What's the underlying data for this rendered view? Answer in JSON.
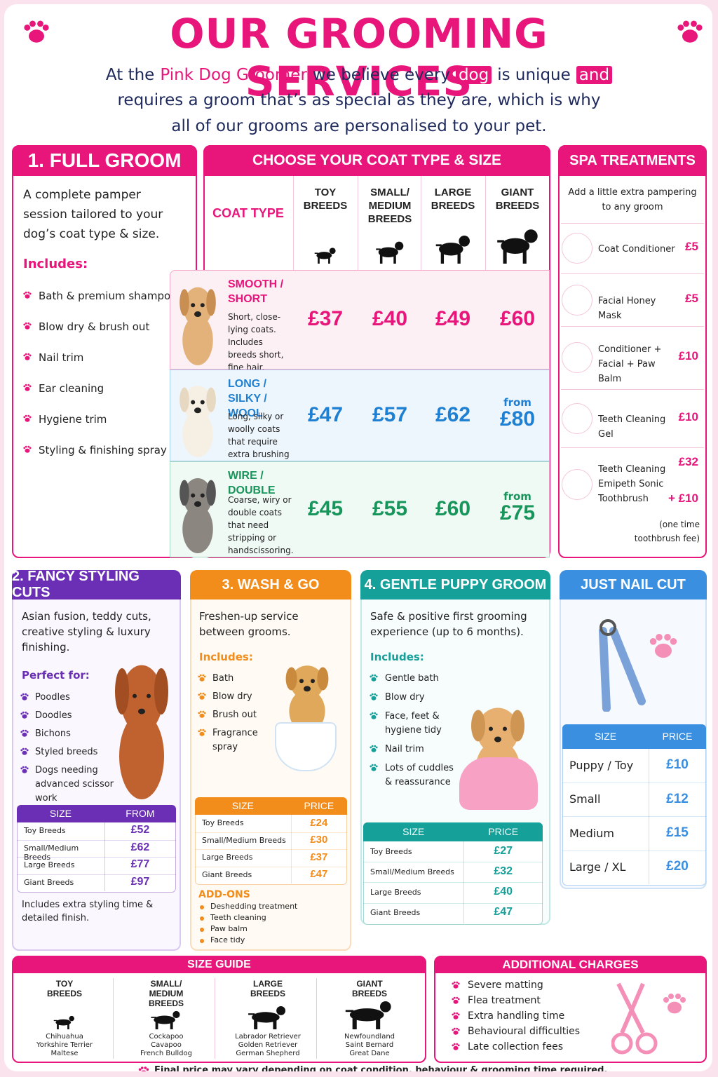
{
  "header": {
    "title": "OUR GROOMING SERVICES",
    "intro_line1": [
      {
        "text": "At the",
        "style": "plain"
      },
      {
        "text": "Pink Dog Groomer",
        "style": "brand"
      },
      {
        "text": "we believe every",
        "style": "plain"
      },
      {
        "text": "dog",
        "style": "highlight"
      },
      {
        "text": "is unique",
        "style": "plain"
      },
      {
        "text": "and",
        "style": "highlight"
      }
    ],
    "intro_rest": [
      "requires a groom that’s as special as they are, which is why",
      "all of our grooms are personalised to your pet."
    ]
  },
  "full_groom": {
    "title": "1. FULL GROOM",
    "description": "A complete pamper session tailored to your dog’s coat type & size.",
    "includes_label": "Includes:",
    "items": [
      "Bath & premium shampoo",
      "Blow dry & brush out",
      "Nail trim",
      "Ear cleaning",
      "Hygiene trim",
      "Styling & finishing spray"
    ]
  },
  "coat_table": {
    "title": "CHOOSE YOUR COAT TYPE & SIZE",
    "coat_type_label": "COAT TYPE",
    "columns": [
      "TOY BREEDS",
      "SMALL/ MEDIUM BREEDS",
      "LARGE BREEDS",
      "GIANT BREEDS"
    ],
    "rows": [
      {
        "name": "SMOOTH / SHORT",
        "description": "Short, close-lying coats. Includes breeds short, fine hair.",
        "color": "#e8157a",
        "bg": "#fdf0f5",
        "prices": [
          "£37",
          "£40",
          "£49",
          "£60"
        ]
      },
      {
        "name": "LONG / SILKY / WOOL",
        "description": "Long, silky or woolly coats that require extra brushing & drying.",
        "color": "#1f7fd1",
        "bg": "#eef6fd",
        "prices": [
          "£47",
          "£57",
          "£62",
          {
            "prefix": "from",
            "price": "£80"
          }
        ]
      },
      {
        "name": "WIRE / DOUBLE",
        "description": "Coarse, wiry or double coats that need stripping or handscissoring.",
        "color": "#18955a",
        "bg": "#effaf5",
        "prices": [
          "£45",
          "£55",
          "£60",
          {
            "prefix": "from",
            "price": "£75"
          }
        ]
      }
    ]
  },
  "spa": {
    "title": "SPA TREATMENTS",
    "subtitle": "Add a little extra pampering to any groom",
    "items": [
      {
        "name": "Coat Conditioner",
        "price": "£5"
      },
      {
        "name": "Facial Honey Mask",
        "price": "£5"
      },
      {
        "name": "Conditioner + Facial + Paw Balm",
        "price": "£10"
      },
      {
        "name": "Teeth Cleaning Gel",
        "price": "£10"
      },
      {
        "name": "Teeth Cleaning Emipeth Sonic Toothbrush",
        "price": "£32",
        "extra": "+ £10"
      }
    ],
    "note": "(one time toothbrush fee)"
  },
  "fancy": {
    "title": "2. FANCY STYLING CUTS",
    "description": "Asian fusion, teddy cuts, creative styling & luxury finishing.",
    "list_label": "Perfect for:",
    "items": [
      "Poodles",
      "Doodles",
      "Bichons",
      "Styled breeds",
      "Dogs needing advanced scissor work"
    ],
    "table_header": [
      "SIZE",
      "FROM"
    ],
    "table_rows": [
      [
        "Toy Breeds",
        "£52"
      ],
      [
        "Small/Medium Breeds",
        "£62"
      ],
      [
        "Large Breeds",
        "£77"
      ],
      [
        "Giant Breeds",
        "£97"
      ]
    ],
    "note": "Includes extra styling time & detailed finish."
  },
  "wash": {
    "title": "3. WASH & GO",
    "description": "Freshen-up service between grooms.",
    "list_label": "Includes:",
    "items": [
      "Bath",
      "Blow dry",
      "Brush out",
      "Fragrance spray"
    ],
    "table_header": [
      "SIZE",
      "PRICE"
    ],
    "table_rows": [
      [
        "Toy Breeds",
        "£24"
      ],
      [
        "Small/Medium Breeds",
        "£30"
      ],
      [
        "Large Breeds",
        "£37"
      ],
      [
        "Giant Breeds",
        "£47"
      ]
    ],
    "addons_label": "ADD-ONS",
    "addons": [
      "Deshedding treatment",
      "Teeth cleaning",
      "Paw balm",
      "Face tidy"
    ]
  },
  "puppy": {
    "title": "4. GENTLE PUPPY GROOM",
    "description": "Safe & positive first grooming experience (up to 6 months).",
    "list_label": "Includes:",
    "items": [
      "Gentle bath",
      "Blow dry",
      "Face, feet & hygiene tidy",
      "Nail trim",
      "Lots of cuddles & reassurance"
    ],
    "table_header": [
      "SIZE",
      "PRICE"
    ],
    "table_rows": [
      [
        "Toy Breeds",
        "£27"
      ],
      [
        "Small/Medium Breeds",
        "£32"
      ],
      [
        "Large Breeds",
        "£40"
      ],
      [
        "Giant Breeds",
        "£47"
      ]
    ]
  },
  "nail": {
    "title": "JUST NAIL CUT",
    "table_header": [
      "SIZE",
      "PRICE"
    ],
    "table_rows": [
      [
        "Puppy / Toy",
        "£10"
      ],
      [
        "Small",
        "£12"
      ],
      [
        "Medium",
        "£15"
      ],
      [
        "Large / XL",
        "£20"
      ]
    ]
  },
  "size_guide": {
    "title": "SIZE GUIDE",
    "columns": [
      {
        "label": "TOY BREEDS",
        "breeds": [
          "Chihuahua",
          "Yorkshire Terrier",
          "Maltese"
        ]
      },
      {
        "label": "SMALL/ MEDIUM BREEDS",
        "breeds": [
          "Cockapoo",
          "Cavapoo",
          "French Bulldog"
        ]
      },
      {
        "label": "LARGE BREEDS",
        "breeds": [
          "Labrador Retriever",
          "Golden Retriever",
          "German Shepherd"
        ]
      },
      {
        "label": "GIANT BREEDS",
        "breeds": [
          "Newfoundland",
          "Saint Bernard",
          "Great Dane"
        ]
      }
    ]
  },
  "additional": {
    "title": "ADDITIONAL CHARGES",
    "items": [
      "Severe matting",
      "Flea treatment",
      "Extra handling time",
      "Behavioural difficulties",
      "Late collection fees"
    ]
  },
  "footer": "Final price may vary depending on coat condition, behaviour & grooming time required."
}
